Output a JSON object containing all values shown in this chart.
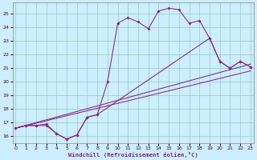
{
  "xlabel": "Windchill (Refroidissement éolien,°C)",
  "bg_color": "#cceeff",
  "grid_color": "#99ccbb",
  "line_color": "#882288",
  "xlim": [
    -0.3,
    23.3
  ],
  "ylim": [
    15.5,
    25.8
  ],
  "yticks": [
    16,
    17,
    18,
    19,
    20,
    21,
    22,
    23,
    24,
    25
  ],
  "xticks": [
    0,
    1,
    2,
    3,
    4,
    5,
    6,
    7,
    8,
    9,
    10,
    11,
    12,
    13,
    14,
    15,
    16,
    17,
    18,
    19,
    20,
    21,
    22,
    23
  ],
  "curve_top_x": [
    0,
    1,
    2,
    3,
    4,
    5,
    6,
    7,
    8,
    9,
    10,
    11,
    12,
    13,
    14,
    15,
    16,
    17,
    18,
    19,
    20,
    21,
    22,
    23
  ],
  "curve_top_y": [
    16.6,
    16.8,
    16.8,
    16.8,
    16.2,
    15.8,
    16.1,
    17.4,
    17.6,
    20.0,
    24.3,
    24.7,
    24.4,
    23.9,
    25.2,
    25.4,
    25.3,
    24.3,
    24.5,
    23.2,
    21.5,
    21.0,
    21.5,
    21.1
  ],
  "curve_mid_x": [
    0,
    1,
    2,
    3,
    4,
    5,
    6,
    7,
    8,
    19,
    20,
    21,
    22,
    23
  ],
  "curve_mid_y": [
    16.6,
    16.8,
    16.8,
    16.9,
    16.2,
    15.8,
    16.1,
    17.4,
    17.6,
    23.2,
    21.5,
    21.0,
    21.5,
    21.1
  ],
  "line1_x": [
    0,
    23
  ],
  "line1_y": [
    16.6,
    21.3
  ],
  "line2_x": [
    0,
    23
  ],
  "line2_y": [
    16.6,
    20.8
  ]
}
